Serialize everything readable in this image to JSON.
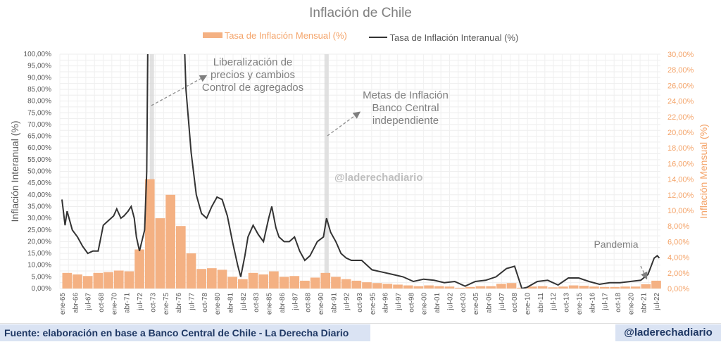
{
  "chart_data": {
    "type": "bar+line",
    "title": "Inflación de Chile",
    "legend": {
      "placement": "top",
      "items": [
        {
          "label": "Tasa de Inflación Mensual (%)",
          "color": "#f4b183",
          "kind": "bar"
        },
        {
          "label": "Tasa de Inflación Interanual (%)",
          "color": "#333333",
          "kind": "line"
        }
      ]
    },
    "ylabel_left": "Inflación Interanual (%)",
    "ylabel_right": "Inflación Mensual (%)",
    "ylim_left": [
      0,
      100
    ],
    "ylim_right": [
      0,
      30
    ],
    "yticks_left": [
      "0,00%",
      "5,00%",
      "10,00%",
      "15,00%",
      "20,00%",
      "25,00%",
      "30,00%",
      "35,00%",
      "40,00%",
      "45,00%",
      "50,00%",
      "55,00%",
      "60,00%",
      "65,00%",
      "70,00%",
      "75,00%",
      "80,00%",
      "85,00%",
      "90,00%",
      "95,00%",
      "100,00%"
    ],
    "yticks_right": [
      "0,00%",
      "2,00%",
      "4,00%",
      "6,00%",
      "8,00%",
      "10,00%",
      "12,00%",
      "14,00%",
      "16,00%",
      "18,00%",
      "20,00%",
      "22,00%",
      "24,00%",
      "26,00%",
      "28,00%",
      "30,00%"
    ],
    "xticks": [
      "ene-65",
      "abr-66",
      "jul-67",
      "oct-68",
      "ene-70",
      "abr-71",
      "jul-72",
      "oct-73",
      "ene-75",
      "abr-76",
      "jul-77",
      "oct-78",
      "ene-80",
      "abr-81",
      "jul-82",
      "oct-83",
      "ene-85",
      "abr-86",
      "jul-87",
      "oct-88",
      "ene-90",
      "abr-91",
      "jul-92",
      "oct-93",
      "ene-95",
      "abr-96",
      "jul-97",
      "oct-98",
      "ene-00",
      "abr-01",
      "jul-02",
      "oct-03",
      "ene-05",
      "abr-06",
      "jul-07",
      "oct-08",
      "ene-10",
      "abr-11",
      "jul-12",
      "oct-13",
      "ene-15",
      "abr-16",
      "jul-17",
      "oct-18",
      "ene-20",
      "abr-21",
      "jul-22"
    ],
    "xrange_years": [
      1965,
      2022.5
    ],
    "grid": true,
    "monthly_avg_by_year": {
      "years": [
        1965,
        1966,
        1967,
        1968,
        1969,
        1970,
        1971,
        1972,
        1973,
        1974,
        1975,
        1976,
        1977,
        1978,
        1979,
        1980,
        1981,
        1982,
        1983,
        1984,
        1985,
        1986,
        1987,
        1988,
        1989,
        1990,
        1991,
        1992,
        1993,
        1994,
        1995,
        1996,
        1997,
        1998,
        1999,
        2000,
        2001,
        2002,
        2003,
        2004,
        2005,
        2006,
        2007,
        2008,
        2009,
        2010,
        2011,
        2012,
        2013,
        2014,
        2015,
        2016,
        2017,
        2018,
        2019,
        2020,
        2021,
        2022
      ],
      "values": [
        2.0,
        1.8,
        1.6,
        2.0,
        2.1,
        2.3,
        2.2,
        5,
        14,
        9,
        12,
        8,
        4.5,
        2.5,
        2.6,
        2.4,
        1.5,
        1.2,
        2.0,
        1.8,
        2.2,
        1.5,
        1.6,
        1.0,
        1.4,
        2.0,
        1.5,
        1.2,
        1.0,
        0.8,
        0.7,
        0.6,
        0.5,
        0.4,
        0.3,
        0.4,
        0.3,
        0.25,
        0.1,
        0.2,
        0.3,
        0.3,
        0.6,
        0.7,
        0.1,
        0.25,
        0.3,
        0.15,
        0.25,
        0.4,
        0.35,
        0.25,
        0.2,
        0.2,
        0.25,
        0.25,
        0.55,
        1.0
      ]
    },
    "interanual": {
      "x": [
        1965,
        1965.3,
        1965.5,
        1966,
        1966.5,
        1967,
        1967.5,
        1968,
        1968.5,
        1969,
        1969.5,
        1970,
        1970.3,
        1970.7,
        1971,
        1971.4,
        1971.7,
        1972,
        1972.2,
        1972.5,
        1973,
        1973.2,
        1973.4,
        1976.5,
        1977,
        1977.5,
        1978,
        1978.5,
        1979,
        1979.5,
        1980,
        1980.5,
        1981,
        1981.5,
        1982,
        1982.3,
        1982.7,
        1983,
        1983.5,
        1984,
        1984.5,
        1985,
        1985.3,
        1985.7,
        1986,
        1986.5,
        1987,
        1987.5,
        1988,
        1988.5,
        1989,
        1989.7,
        1990.3,
        1990.6,
        1991,
        1991.5,
        1992,
        1992.5,
        1993,
        1994,
        1995,
        1996,
        1997,
        1998,
        1999,
        2000,
        2001,
        2002,
        2003,
        2004,
        2005,
        2006,
        2007,
        2008,
        2008.8,
        2009.5,
        2010,
        2011,
        2012,
        2013,
        2014,
        2015,
        2016,
        2017,
        2018,
        2019,
        2020,
        2021,
        2021.7,
        2022.3,
        2022.6,
        2022.8
      ],
      "y": [
        38,
        27,
        33,
        25,
        22,
        18,
        15,
        16,
        16,
        27,
        29,
        31,
        34,
        30,
        31,
        33,
        35,
        30,
        22,
        16,
        25,
        50,
        150,
        150,
        85,
        58,
        40,
        32,
        30,
        35,
        39,
        38,
        31,
        20,
        10,
        5,
        14,
        22,
        27,
        23,
        20,
        30,
        35,
        26,
        22,
        20,
        20,
        22,
        16,
        12,
        14,
        20,
        22,
        30,
        24,
        20,
        15,
        13,
        12,
        12,
        8,
        7,
        6,
        5,
        3,
        4,
        3.5,
        2.5,
        3,
        1,
        3,
        3.5,
        5,
        8.5,
        9.5,
        0,
        0.5,
        3,
        3.5,
        1.5,
        4.5,
        4.5,
        3,
        1.8,
        2.5,
        2.5,
        3,
        3.5,
        6,
        13,
        14,
        13
      ]
    },
    "annotations": [
      {
        "text_lines": [
          "Liberalización de",
          "precios y cambios",
          "Control de agregados"
        ]
      },
      {
        "text_lines": [
          "Metas de Inflación",
          "Banco Central",
          "independiente"
        ]
      },
      {
        "text_lines": [
          "Pandemia"
        ]
      }
    ],
    "watermark": "@laderechadiario"
  },
  "footer": {
    "source": "Fuente: elaboración en base a Banco Central de Chile - La Derecha Diario",
    "handle": "@laderechadiario"
  }
}
